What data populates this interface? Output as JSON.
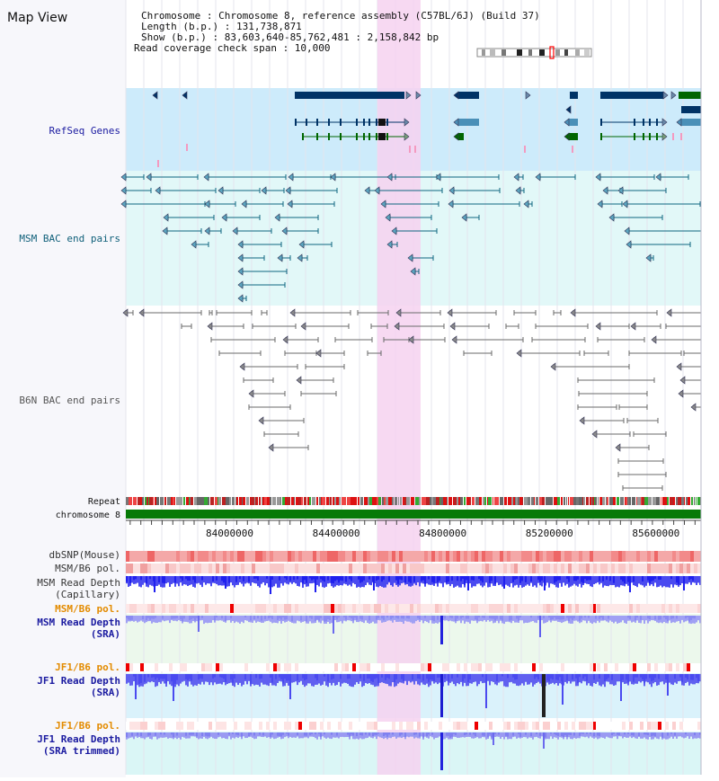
{
  "page": {
    "title": "Map View"
  },
  "header": {
    "info_lines": [
      "Chromosome      : Chromosome 8, reference assembly (C57BL/6J) (Build 37)",
      "Length (b.p.) : 131,738,871",
      "Show (b.p.) : 83,603,640-85,762,481 : 2,158,842 bp",
      "Read coverage check span : 10,000"
    ]
  },
  "axis": {
    "start_bp": 83603640,
    "end_bp": 85762481,
    "tick_labels": [
      "84000000",
      "84400000",
      "84800000",
      "85200000",
      "85600000"
    ],
    "tick_values": [
      84000000,
      84400000,
      84800000,
      85200000,
      85600000
    ],
    "highlight_range_bp": [
      84548000,
      84710000
    ]
  },
  "tracks": {
    "refseq": "RefSeq Genes",
    "msm_bac": "MSM BAC end pairs",
    "b6n_bac": "B6N BAC end pairs",
    "repeat": "Repeat",
    "chromosome": "chromosome 8",
    "dbsnp": "dbSNP(Mouse)",
    "msm_pol": "MSM/B6 pol.",
    "msm_depth_cap_1": "MSM Read Depth",
    "msm_depth_cap_2": "(Capillary)",
    "msm_pol2": "MSM/B6 pol.",
    "msm_depth_sra_1": "MSM Read Depth",
    "msm_depth_sra_2": "(SRA)",
    "jf1_pol": "JF1/B6 pol.",
    "jf1_depth_sra_1": "JF1 Read Depth",
    "jf1_depth_sra_2": "(SRA)",
    "jf1_pol2": "JF1/B6 pol.",
    "jf1_depth_trim_1": "JF1 Read Depth",
    "jf1_depth_trim_2": "(SRA trimmed)"
  },
  "colors": {
    "highlight": "#f6d2f0",
    "refseq_bg": "#cdebfb",
    "bac_bg": "#e2f8f8",
    "gene_dark": "#003366",
    "gene_green": "#006600",
    "msm_pair": "#0f6680",
    "b6n_pair": "#6a6a6a",
    "chromosome_bar": "#077a07",
    "depth_blue": "#2222dd",
    "depth_light": "#7a7aee",
    "title_blue": "#1a1aa0",
    "title_orange": "#e38b00",
    "title_teal": "#10607a",
    "title_gray": "#333333"
  }
}
